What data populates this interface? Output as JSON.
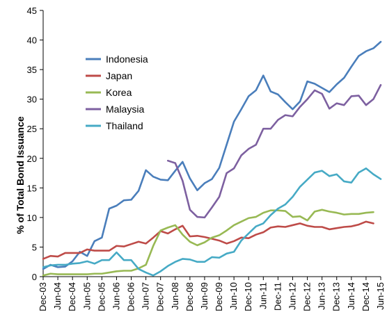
{
  "chart_data": {
    "type": "line",
    "xlabel": "",
    "ylabel": "% of Total Bond Issuance",
    "ylim": [
      0,
      45
    ],
    "yticks": [
      0,
      5,
      10,
      15,
      20,
      25,
      30,
      35,
      40,
      45
    ],
    "xticks": [
      "Dec-03",
      "Jun-04",
      "Dec-04",
      "Jun-05",
      "Dec-05",
      "Jun-06",
      "Dec-06",
      "Jun-07",
      "Dec-07",
      "Jun-08",
      "Dec-08",
      "Jun-09",
      "Dec-09",
      "Jun-10",
      "Dec-10",
      "Jun-11",
      "Dec-11",
      "Jun-12",
      "Dec-12",
      "Jun-13",
      "Dec-13",
      "Jun-14",
      "Dec-14",
      "Jun-15"
    ],
    "legend_position": "top-left",
    "grid": false,
    "x": [
      "Dec-03",
      "Mar-04",
      "Jun-04",
      "Sep-04",
      "Dec-04",
      "Mar-05",
      "Jun-05",
      "Sep-05",
      "Dec-05",
      "Mar-06",
      "Jun-06",
      "Sep-06",
      "Dec-06",
      "Mar-07",
      "Jun-07",
      "Sep-07",
      "Dec-07",
      "Mar-08",
      "Jun-08",
      "Sep-08",
      "Dec-08",
      "Mar-09",
      "Jun-09",
      "Sep-09",
      "Dec-09",
      "Mar-10",
      "Jun-10",
      "Sep-10",
      "Dec-10",
      "Mar-11",
      "Jun-11",
      "Sep-11",
      "Dec-11",
      "Mar-12",
      "Jun-12",
      "Sep-12",
      "Dec-12",
      "Mar-13",
      "Jun-13",
      "Sep-13",
      "Dec-13",
      "Mar-14",
      "Jun-14",
      "Sep-14",
      "Dec-14",
      "Mar-15",
      "Jun-15"
    ],
    "series": [
      {
        "name": "Indonesia",
        "color": "#4a7ebb",
        "values": [
          1.3,
          2.0,
          1.6,
          1.7,
          2.6,
          4.2,
          3.5,
          6.0,
          6.6,
          11.5,
          12.0,
          12.9,
          13.0,
          14.5,
          18.0,
          16.9,
          16.4,
          16.3,
          17.9,
          19.4,
          16.6,
          14.6,
          15.8,
          16.5,
          18.4,
          22.3,
          26.2,
          28.3,
          30.5,
          31.5,
          34.0,
          31.3,
          30.8,
          29.5,
          28.3,
          29.6,
          33.0,
          32.6,
          31.9,
          31.2,
          32.5,
          33.6,
          35.5,
          37.3,
          38.1,
          38.6,
          39.7
        ]
      },
      {
        "name": "Japan",
        "color": "#be4b48",
        "values": [
          3.0,
          3.5,
          3.4,
          4.0,
          4.0,
          4.0,
          4.6,
          4.4,
          4.4,
          4.4,
          5.2,
          5.1,
          5.5,
          5.9,
          5.6,
          6.6,
          7.7,
          7.3,
          8.0,
          8.6,
          6.8,
          6.9,
          6.7,
          6.4,
          6.1,
          5.6,
          6.0,
          6.6,
          6.5,
          7.1,
          7.5,
          8.3,
          8.5,
          8.4,
          8.7,
          9.0,
          8.6,
          8.4,
          8.4,
          8.0,
          8.2,
          8.4,
          8.5,
          8.8,
          9.3,
          9.0,
          null
        ]
      },
      {
        "name": "Korea",
        "color": "#98b954",
        "values": [
          0.2,
          0.5,
          0.4,
          0.4,
          0.4,
          0.4,
          0.4,
          0.5,
          0.5,
          0.7,
          0.9,
          1.0,
          1.0,
          1.4,
          2.0,
          5.2,
          7.8,
          8.3,
          8.7,
          7.1,
          5.9,
          5.3,
          5.8,
          6.6,
          7.0,
          7.8,
          8.7,
          9.3,
          9.9,
          10.1,
          10.8,
          11.2,
          11.2,
          11.1,
          10.1,
          10.2,
          9.5,
          11.0,
          11.3,
          11.0,
          10.8,
          10.5,
          10.6,
          10.6,
          10.8,
          10.9,
          null
        ]
      },
      {
        "name": "Malaysia",
        "color": "#7d60a0",
        "values": [
          null,
          null,
          null,
          null,
          null,
          null,
          null,
          null,
          null,
          null,
          null,
          null,
          null,
          null,
          null,
          null,
          null,
          19.6,
          19.2,
          16.2,
          11.3,
          10.1,
          10.0,
          11.7,
          13.5,
          17.5,
          18.3,
          20.5,
          21.6,
          22.3,
          25.0,
          25.0,
          26.5,
          27.3,
          27.1,
          28.7,
          30.0,
          31.5,
          30.9,
          28.4,
          29.3,
          29.0,
          30.5,
          30.6,
          29.0,
          30.0,
          32.4
        ]
      },
      {
        "name": "Thailand",
        "color": "#46aac5",
        "values": [
          1.6,
          1.9,
          2.0,
          2.0,
          2.2,
          2.3,
          2.6,
          2.2,
          2.8,
          2.8,
          4.1,
          2.8,
          2.8,
          1.3,
          0.7,
          0.2,
          0.9,
          1.8,
          2.5,
          3.0,
          2.9,
          2.5,
          2.5,
          3.3,
          3.2,
          3.9,
          4.2,
          6.1,
          7.3,
          8.5,
          9.0,
          10.4,
          11.5,
          12.2,
          13.5,
          15.2,
          16.4,
          17.6,
          17.9,
          17.0,
          17.3,
          16.1,
          15.9,
          17.6,
          18.3,
          17.3,
          16.5
        ]
      }
    ]
  }
}
